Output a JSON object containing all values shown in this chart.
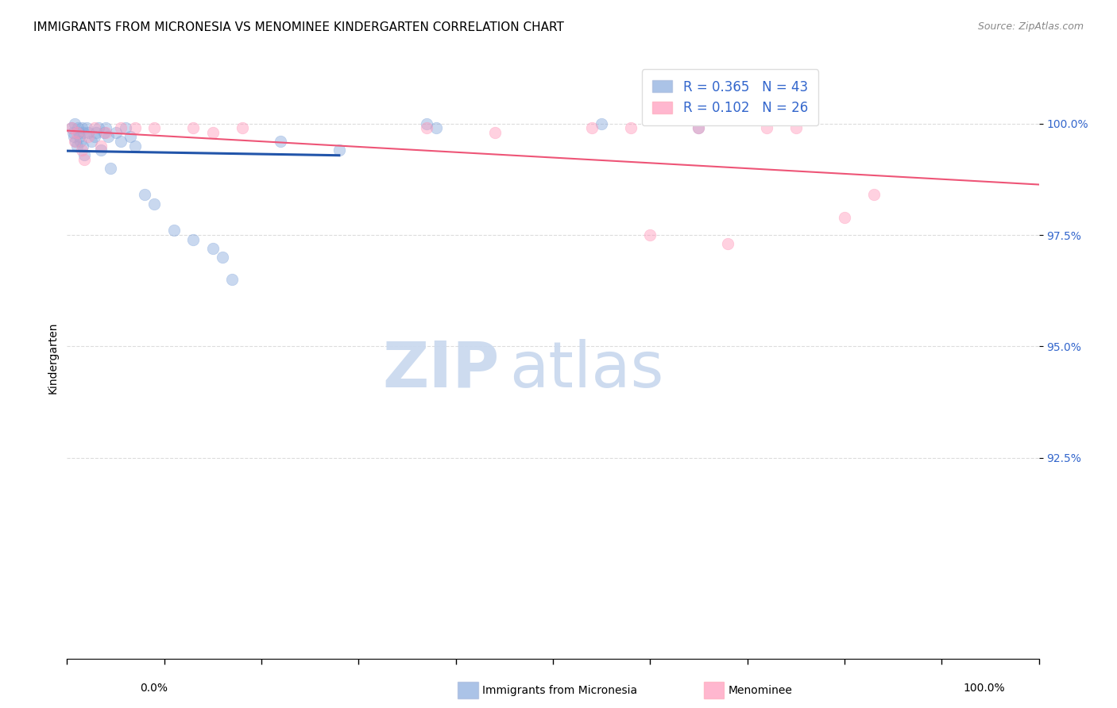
{
  "title": "IMMIGRANTS FROM MICRONESIA VS MENOMINEE KINDERGARTEN CORRELATION CHART",
  "source": "Source: ZipAtlas.com",
  "ylabel": "Kindergarten",
  "ytick_labels": [
    "100.0%",
    "97.5%",
    "95.0%",
    "92.5%"
  ],
  "ytick_values": [
    100.0,
    97.5,
    95.0,
    92.5
  ],
  "ylim": [
    88.0,
    101.5
  ],
  "xlim": [
    0.0,
    100.0
  ],
  "blue_r": 0.365,
  "blue_n": 43,
  "pink_r": 0.102,
  "pink_n": 26,
  "blue_scatter_x": [
    0.5,
    0.6,
    0.7,
    0.8,
    0.9,
    1.0,
    1.1,
    1.2,
    1.3,
    1.4,
    1.5,
    1.6,
    1.7,
    1.8,
    2.0,
    2.2,
    2.5,
    2.8,
    3.0,
    3.2,
    3.5,
    3.8,
    4.0,
    4.2,
    4.5,
    5.0,
    5.5,
    6.0,
    6.5,
    7.0,
    8.0,
    9.0,
    11.0,
    13.0,
    15.0,
    16.0,
    17.0,
    22.0,
    28.0,
    37.0,
    38.0,
    55.0,
    65.0
  ],
  "blue_scatter_y": [
    99.9,
    99.8,
    99.7,
    100.0,
    99.6,
    99.5,
    99.9,
    99.8,
    99.7,
    99.6,
    99.9,
    99.5,
    99.8,
    99.3,
    99.9,
    99.8,
    99.6,
    99.7,
    99.8,
    99.9,
    99.4,
    99.8,
    99.9,
    99.7,
    99.0,
    99.8,
    99.6,
    99.9,
    99.7,
    99.5,
    98.4,
    98.2,
    97.6,
    97.4,
    97.2,
    97.0,
    96.5,
    99.6,
    99.4,
    100.0,
    99.9,
    100.0,
    99.9
  ],
  "pink_scatter_x": [
    0.5,
    0.8,
    1.0,
    1.5,
    1.8,
    2.2,
    2.8,
    3.5,
    4.0,
    5.5,
    7.0,
    9.0,
    13.0,
    15.0,
    18.0,
    37.0,
    44.0,
    54.0,
    58.0,
    60.0,
    65.0,
    68.0,
    72.0,
    75.0,
    80.0,
    83.0
  ],
  "pink_scatter_y": [
    99.9,
    99.6,
    99.8,
    99.4,
    99.2,
    99.7,
    99.9,
    99.5,
    99.8,
    99.9,
    99.9,
    99.9,
    99.9,
    99.8,
    99.9,
    99.9,
    99.8,
    99.9,
    99.9,
    97.5,
    99.9,
    97.3,
    99.9,
    99.9,
    97.9,
    98.4
  ],
  "scatter_size": 110,
  "scatter_alpha": 0.45,
  "blue_color": "#88aadd",
  "pink_color": "#ff99bb",
  "blue_line_color": "#2255aa",
  "pink_line_color": "#ee5577",
  "grid_color": "#bbbbbb",
  "grid_linestyle": "--",
  "grid_alpha": 0.5,
  "title_fontsize": 11,
  "axis_label_fontsize": 10,
  "tick_fontsize": 10,
  "source_fontsize": 9,
  "watermark_zip_color": "#c8d8ee",
  "watermark_atlas_color": "#c8d8ee"
}
